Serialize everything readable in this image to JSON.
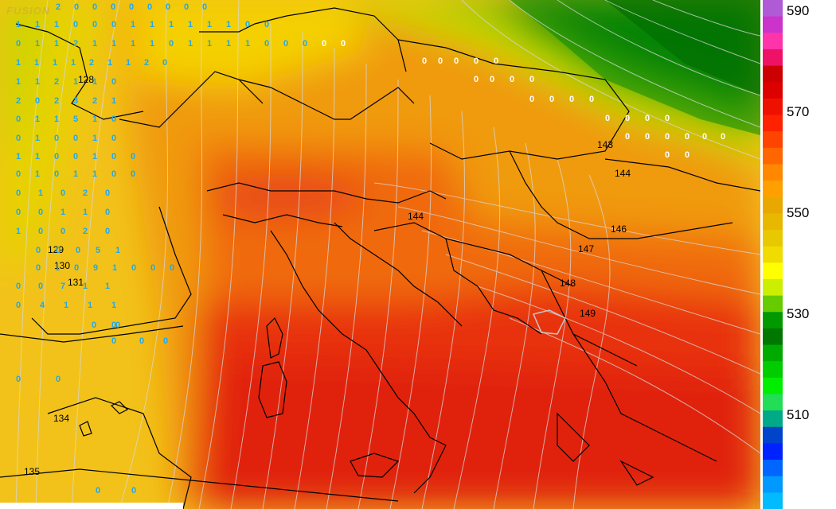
{
  "logo": "FUSION",
  "scale": {
    "labels": [
      "590",
      "570",
      "550",
      "530",
      "510"
    ],
    "colors": [
      "#b05bd6",
      "#cc33cc",
      "#ff33aa",
      "#ee1166",
      "#cc0000",
      "#dd0000",
      "#ee1100",
      "#ff2200",
      "#ff4400",
      "#ff6600",
      "#ff8800",
      "#ffa000",
      "#e8a800",
      "#e8b800",
      "#e8c800",
      "#f0dc00",
      "#ffff00",
      "#ccee00",
      "#66cc00",
      "#009900",
      "#007700",
      "#00aa00",
      "#00cc00",
      "#00ee00",
      "#22dd55",
      "#00aa88",
      "#0044cc",
      "#0022ff",
      "#0066ff",
      "#0099ff",
      "#00bbff"
    ]
  },
  "contour_labels": [
    "128",
    "129",
    "130",
    "131",
    "134",
    "135",
    "143",
    "144",
    "144",
    "146",
    "147",
    "148",
    "149"
  ],
  "precip_values": [
    "2",
    "0",
    "0",
    "0",
    "0",
    "0",
    "0",
    "0",
    "0",
    "1",
    "1",
    "1",
    "0",
    "0",
    "0",
    "1",
    "1",
    "1",
    "1",
    "1",
    "1",
    "0",
    "0",
    "0",
    "1",
    "1",
    "2",
    "1",
    "1",
    "1",
    "1",
    "0",
    "1",
    "1",
    "1",
    "1",
    "0",
    "0",
    "0",
    "0",
    "0",
    "1",
    "1",
    "1",
    "1",
    "2",
    "1",
    "1",
    "2",
    "0",
    "1",
    "1",
    "2",
    "1",
    "1",
    "0",
    "2",
    "0",
    "2",
    "3",
    "2",
    "1",
    "0",
    "1",
    "1",
    "5",
    "1",
    "0",
    "0",
    "1",
    "0",
    "0",
    "1",
    "0",
    "1",
    "1",
    "0",
    "0",
    "1",
    "0",
    "0",
    "0",
    "1",
    "0",
    "1",
    "1",
    "0",
    "0",
    "0",
    "1",
    "0",
    "2",
    "0",
    "0",
    "0",
    "1",
    "1",
    "0",
    "1",
    "0",
    "0",
    "2",
    "0",
    "0",
    "0",
    "0",
    "5",
    "1",
    "0",
    "1",
    "0",
    "9",
    "1",
    "0",
    "0",
    "0",
    "0",
    "0",
    "7",
    "1",
    "1",
    "0",
    "4",
    "1",
    "1",
    "1",
    "0",
    "0",
    "0",
    "0",
    "0",
    "0",
    "0",
    "0",
    "0",
    "0",
    "0",
    "0",
    "0",
    "0",
    "0",
    "0",
    "0",
    "0",
    "0",
    "0",
    "0",
    "0",
    "0",
    "0",
    "0",
    "0",
    "0",
    "0",
    "0",
    "0",
    "0",
    "0",
    "0",
    "0",
    "0"
  ]
}
